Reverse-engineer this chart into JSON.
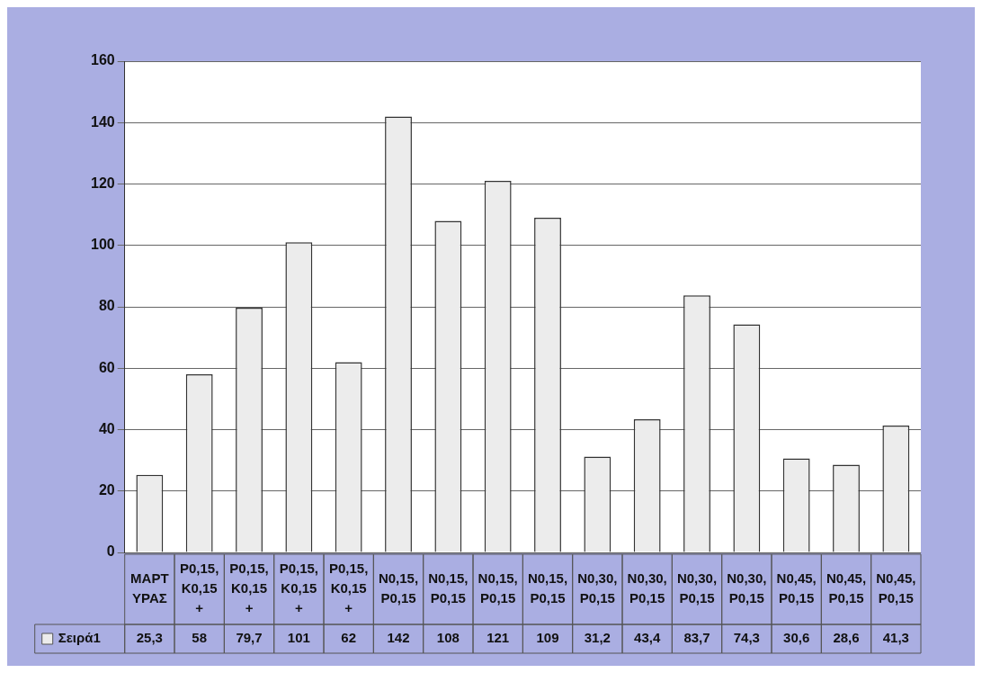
{
  "chart_data": {
    "type": "bar",
    "categories": [
      "ΜΑΡΤΥΡΑΣ",
      "P0,15,K0,15+",
      "P0,15,K0,15+",
      "P0,15,K0,15+",
      "P0,15,K0,15+",
      "N0,15,P0,15",
      "N0,15,P0,15",
      "N0,15,P0,15",
      "N0,15,P0,15",
      "N0,30,P0,15",
      "N0,30,P0,15",
      "N0,30,P0,15",
      "N0,30,P0,15",
      "N0,45,P0,15",
      "N0,45,P0,15",
      "N0,45,P0,15"
    ],
    "series": [
      {
        "name": "Σειρά1",
        "color": "#ececec",
        "values": [
          25.3,
          58,
          79.7,
          101,
          62,
          142,
          108,
          121,
          109,
          31.2,
          43.4,
          83.7,
          74.3,
          30.6,
          28.6,
          41.3
        ]
      }
    ],
    "value_labels": [
      "25,3",
      "58",
      "79,7",
      "101",
      "62",
      "142",
      "108",
      "121",
      "109",
      "31,2",
      "43,4",
      "83,7",
      "74,3",
      "30,6",
      "28,6",
      "41,3"
    ],
    "ylim": [
      0,
      160
    ],
    "yticks": [
      0,
      20,
      40,
      60,
      80,
      100,
      120,
      140,
      160
    ],
    "grid": "y",
    "legend": "bottom"
  }
}
